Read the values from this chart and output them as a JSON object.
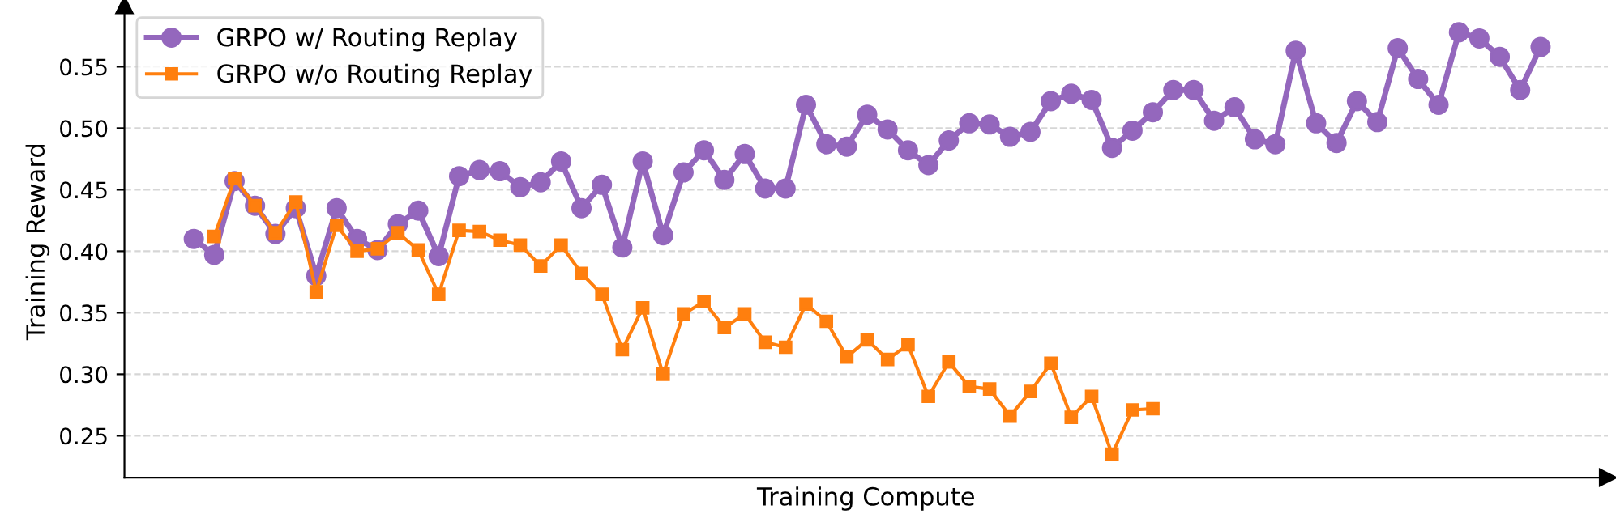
{
  "chart_data": {
    "type": "line",
    "xlabel": "Training Compute",
    "ylabel": "Training Reward",
    "categories": [
      null,
      null,
      null,
      null,
      null,
      null,
      null,
      null,
      null,
      null,
      null,
      null,
      null,
      null,
      null,
      null,
      null,
      null,
      null,
      null,
      null,
      null,
      null,
      null,
      null,
      null,
      null,
      null,
      null,
      null,
      null,
      null,
      null,
      null,
      null,
      null,
      null,
      null,
      null,
      null,
      null,
      null,
      null,
      null,
      null,
      null,
      null,
      null,
      null,
      null,
      null,
      null,
      null,
      null,
      null,
      null,
      null,
      null,
      null,
      null,
      null,
      null,
      null,
      null,
      null,
      null,
      null
    ],
    "series": [
      {
        "name": "GRPO w/ Routing Replay",
        "color": "#9467bd",
        "marker": "circle",
        "values": [
          0.41,
          0.397,
          0.457,
          0.437,
          0.414,
          0.435,
          0.38,
          0.435,
          0.41,
          0.401,
          0.422,
          0.433,
          0.396,
          0.461,
          0.466,
          0.465,
          0.452,
          0.456,
          0.473,
          0.435,
          0.454,
          0.403,
          0.473,
          0.413,
          0.464,
          0.482,
          0.458,
          0.479,
          0.451,
          0.451,
          0.519,
          0.487,
          0.485,
          0.511,
          0.499,
          0.482,
          0.47,
          0.49,
          0.504,
          0.503,
          0.493,
          0.497,
          0.522,
          0.528,
          0.523,
          0.484,
          0.498,
          0.513,
          0.531,
          0.531,
          0.506,
          0.517,
          0.491,
          0.487,
          0.563,
          0.504,
          0.488,
          0.522,
          0.505,
          0.565,
          0.54,
          0.519,
          0.578,
          0.573,
          0.558,
          0.531,
          0.566
        ]
      },
      {
        "name": "GRPO w/o Routing Replay",
        "color": "#ff7f0e",
        "marker": "square",
        "values": [
          null,
          0.412,
          0.459,
          0.437,
          0.415,
          0.44,
          0.367,
          0.421,
          0.4,
          0.402,
          0.415,
          0.401,
          0.365,
          0.417,
          0.416,
          0.409,
          0.405,
          0.388,
          0.405,
          0.382,
          0.365,
          0.32,
          0.354,
          0.3,
          0.349,
          0.359,
          0.338,
          0.349,
          0.326,
          0.322,
          0.357,
          0.343,
          0.314,
          0.328,
          0.312,
          0.324,
          0.282,
          0.31,
          0.29,
          0.288,
          0.266,
          0.286,
          0.309,
          0.265,
          0.282,
          0.235,
          0.271,
          0.272,
          null,
          null,
          null,
          null,
          null,
          null,
          null,
          null,
          null,
          null,
          null,
          null,
          null,
          null,
          null,
          null,
          null,
          null,
          null
        ]
      }
    ],
    "ylim": [
      0.216,
      0.6
    ],
    "yticks": [
      {
        "value": 0.25,
        "label": "0.25"
      },
      {
        "value": 0.3,
        "label": "0.30"
      },
      {
        "value": 0.35,
        "label": "0.35"
      },
      {
        "value": 0.4,
        "label": "0.40"
      },
      {
        "value": 0.45,
        "label": "0.45"
      },
      {
        "value": 0.5,
        "label": "0.50"
      },
      {
        "value": 0.55,
        "label": "0.55"
      }
    ],
    "tick_labels": "y",
    "grid": "y",
    "legend": "top left",
    "line_style": "solid"
  }
}
